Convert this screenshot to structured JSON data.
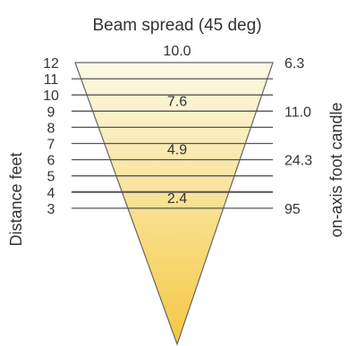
{
  "title": "Beam spread (45 deg)",
  "left_axis_label": "Distance feet",
  "right_axis_label": "on-axis foot candle",
  "colors": {
    "cone_top": "#fbfae6",
    "cone_bottom": "#f5c842",
    "line": "#555555",
    "text": "#333333"
  },
  "distance_scale": {
    "ticks": [
      "12",
      "11",
      "10",
      "9",
      "8",
      "7",
      "6",
      "5",
      "4",
      "3"
    ]
  },
  "beam_diameters": [
    {
      "distance": 12,
      "value": "10.0"
    },
    {
      "distance": 9,
      "value": "7.6"
    },
    {
      "distance": 6,
      "value": "4.9"
    },
    {
      "distance": 3,
      "value": "2.4"
    }
  ],
  "foot_candles": [
    {
      "distance": 12,
      "value": "6.3"
    },
    {
      "distance": 9,
      "value": "11.0"
    },
    {
      "distance": 6,
      "value": "24.3"
    },
    {
      "distance": 3,
      "value": "95"
    }
  ]
}
